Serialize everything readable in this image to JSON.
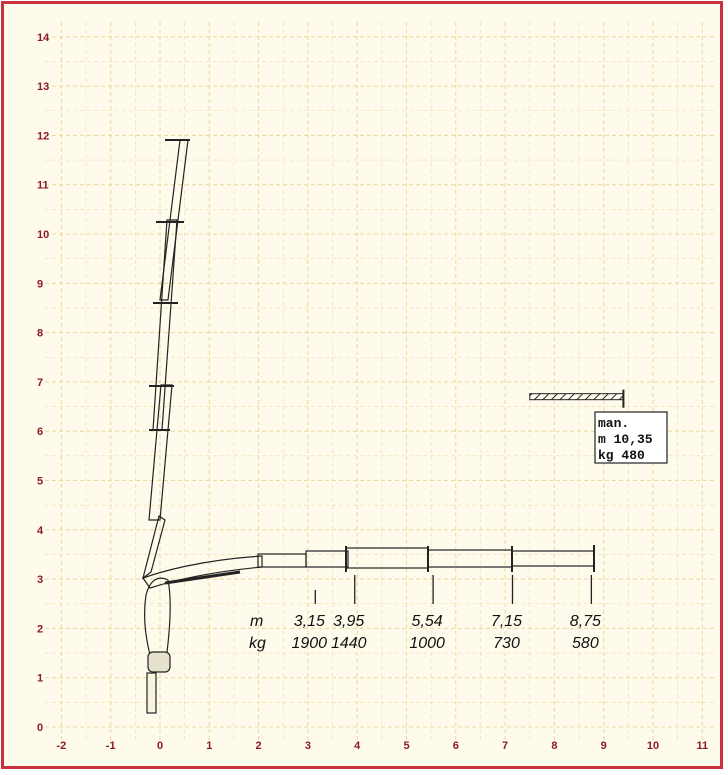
{
  "chart_data": {
    "type": "diagram",
    "title": "",
    "x_ticks": [
      "-2",
      "-1",
      "0",
      "1",
      "2",
      "3",
      "4",
      "5",
      "6",
      "7",
      "8",
      "9",
      "10",
      "11"
    ],
    "y_ticks": [
      "0",
      "1",
      "2",
      "3",
      "4",
      "5",
      "6",
      "7",
      "8",
      "9",
      "10",
      "11",
      "12",
      "13",
      "14"
    ],
    "xlim": [
      -2,
      11
    ],
    "ylim": [
      0,
      14
    ],
    "grid": true,
    "load_table": {
      "row_labels": {
        "reach": "m",
        "load": "kg"
      },
      "points": [
        {
          "reach_label": "3,15",
          "load_label": "1900",
          "x": 3.15
        },
        {
          "reach_label": "3,95",
          "load_label": "1440",
          "x": 3.95
        },
        {
          "reach_label": "5,54",
          "load_label": "1000",
          "x": 5.54
        },
        {
          "reach_label": "7,15",
          "load_label": "730",
          "x": 7.15
        },
        {
          "reach_label": "8,75",
          "load_label": "580",
          "x": 8.75
        }
      ]
    },
    "manual_extension": {
      "line1": "man.",
      "line2": "m 10,35",
      "line3": "kg 480",
      "x_start": 7.5,
      "x_end": 9.4,
      "y": 6.7
    },
    "colors": {
      "frame": "#c8323c",
      "tick_labels": "#8a1a2a",
      "grid": "#ecdca0",
      "background": "#fefbec",
      "crane": "#222222"
    }
  }
}
